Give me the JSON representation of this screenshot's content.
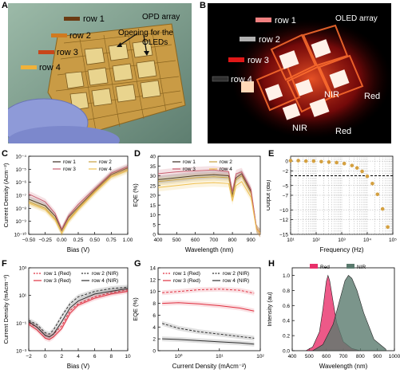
{
  "panels": {
    "A": {
      "letter": "A",
      "title": "OPD array",
      "rows": [
        "row 1",
        "row 2",
        "row 3",
        "row 4"
      ],
      "row_colors": [
        "#6b3a12",
        "#d07a20",
        "#c8461a",
        "#f0b23a"
      ],
      "annotation_line1": "Opening for the",
      "annotation_line2": "OLEDs"
    },
    "B": {
      "letter": "B",
      "title": "OLED array",
      "rows": [
        "row 1",
        "row 2",
        "row 3",
        "row 4"
      ],
      "row_colors": [
        "#f08080",
        "#b0b0b0",
        "#e01818",
        "#303030"
      ],
      "labels": [
        "NIR",
        "Red",
        "NIR",
        "Red"
      ]
    },
    "C": {
      "letter": "C"
    },
    "D": {
      "letter": "D"
    },
    "E": {
      "letter": "E"
    },
    "F": {
      "letter": "F"
    },
    "G": {
      "letter": "G"
    },
    "H": {
      "letter": "H"
    }
  },
  "chart_data": [
    {
      "id": "C",
      "type": "line",
      "xlabel": "Bias (V)",
      "ylabel": "Current Density (Acm⁻²)",
      "xlim": [
        -0.5,
        1.0
      ],
      "ylog": true,
      "ylim_exp": [
        -10,
        -4
      ],
      "xticks": [
        "−0.50",
        "−0.25",
        "0.00",
        "0.25",
        "0.50",
        "0.75",
        "1.00"
      ],
      "yticks": [
        "10⁻¹⁰",
        "10⁻⁹",
        "10⁻⁸",
        "10⁻⁷",
        "10⁻⁶",
        "10⁻⁵",
        "10⁻⁴"
      ],
      "legend": [
        "row 1",
        "row 2",
        "row 3",
        "row 4"
      ],
      "series": [
        {
          "name": "row 1",
          "color": "#3a2a20",
          "x": [
            -0.5,
            -0.25,
            -0.1,
            0.0,
            0.1,
            0.25,
            0.5,
            0.75,
            1.0
          ],
          "y_exp": [
            -7.3,
            -7.8,
            -8.6,
            -9.7,
            -8.7,
            -7.9,
            -6.6,
            -5.4,
            -4.9
          ]
        },
        {
          "name": "row 2",
          "color": "#c8a040",
          "x": [
            -0.5,
            -0.25,
            -0.1,
            0.0,
            0.1,
            0.25,
            0.5,
            0.75,
            1.0
          ],
          "y_exp": [
            -7.5,
            -8.0,
            -8.8,
            -9.9,
            -8.9,
            -8.0,
            -6.7,
            -5.5,
            -5.0
          ]
        },
        {
          "name": "row 3",
          "color": "#c86070",
          "x": [
            -0.5,
            -0.25,
            -0.1,
            0.0,
            0.1,
            0.25,
            0.5,
            0.75,
            1.0
          ],
          "y_exp": [
            -6.9,
            -7.5,
            -8.4,
            -9.6,
            -8.6,
            -7.7,
            -6.5,
            -5.3,
            -4.8
          ]
        },
        {
          "name": "row 4",
          "color": "#f0c050",
          "x": [
            -0.5,
            -0.25,
            -0.1,
            0.0,
            0.1,
            0.25,
            0.5,
            0.75,
            1.0
          ],
          "y_exp": [
            -7.6,
            -8.1,
            -8.9,
            -9.9,
            -9.0,
            -8.1,
            -6.8,
            -5.6,
            -5.1
          ]
        }
      ]
    },
    {
      "id": "D",
      "type": "line",
      "xlabel": "Wavelength (nm)",
      "ylabel": "EQE (%)",
      "xlim": [
        400,
        950
      ],
      "ylim": [
        0,
        40
      ],
      "xticks": [
        "400",
        "500",
        "600",
        "700",
        "800",
        "900"
      ],
      "yticks": [
        "0",
        "5",
        "10",
        "15",
        "20",
        "25",
        "30",
        "35",
        "40"
      ],
      "legend": [
        "row 1",
        "row 2",
        "row 3",
        "row 4"
      ],
      "series": [
        {
          "name": "row 1",
          "color": "#3a2a20",
          "x": [
            400,
            450,
            500,
            600,
            700,
            780,
            800,
            820,
            850,
            900,
            930,
            950
          ],
          "y": [
            28,
            28.5,
            29,
            30,
            30.5,
            30,
            20,
            29,
            31,
            22,
            3,
            0.5
          ]
        },
        {
          "name": "row 2",
          "color": "#c8a040",
          "x": [
            400,
            450,
            500,
            600,
            700,
            780,
            800,
            820,
            850,
            900,
            930,
            950
          ],
          "y": [
            27,
            27.5,
            28,
            29,
            29.5,
            29,
            19,
            28,
            30,
            21,
            3,
            0.5
          ]
        },
        {
          "name": "row 3",
          "color": "#c86070",
          "x": [
            400,
            450,
            500,
            600,
            700,
            780,
            800,
            820,
            850,
            900,
            930,
            950
          ],
          "y": [
            31,
            31.5,
            32,
            32.5,
            33,
            32,
            22,
            31,
            32,
            23,
            3,
            0.5
          ]
        },
        {
          "name": "row 4",
          "color": "#f0c050",
          "x": [
            400,
            450,
            500,
            600,
            700,
            780,
            800,
            820,
            850,
            900,
            930,
            950
          ],
          "y": [
            24,
            24.5,
            25,
            26,
            26.5,
            26,
            17,
            25,
            27,
            19,
            2.5,
            0.5
          ]
        }
      ]
    },
    {
      "id": "E",
      "type": "scatter",
      "xlabel": "Frequency (Hz)",
      "ylabel": "Output (dB)",
      "xlog": true,
      "xlim_exp": [
        1,
        5
      ],
      "ylim": [
        -15,
        1
      ],
      "xticks": [
        "10¹",
        "10²",
        "10³",
        "10⁴",
        "10⁵"
      ],
      "yticks": [
        "0",
        "−2",
        "−5",
        "−7",
        "−10",
        "−12",
        "−15"
      ],
      "ytick_values": [
        0,
        -2,
        -5,
        -7,
        -10,
        -12,
        -15
      ],
      "reference_y": -3,
      "color": "#d4a040",
      "x_exp": [
        1.0,
        1.3,
        1.6,
        1.9,
        2.2,
        2.5,
        2.8,
        3.1,
        3.4,
        3.6,
        3.8,
        4.0,
        4.2,
        4.4,
        4.6,
        4.8
      ],
      "y": [
        0.1,
        0.1,
        0.0,
        0.0,
        -0.1,
        -0.2,
        -0.3,
        -0.5,
        -0.9,
        -1.4,
        -2.1,
        -3.1,
        -4.6,
        -6.8,
        -9.8,
        -13.5
      ]
    },
    {
      "id": "F",
      "type": "line",
      "xlabel": "Bias (V)",
      "ylabel": "Current Density (mAcm⁻²)",
      "xlim": [
        -2,
        10
      ],
      "ylog": true,
      "ylim_exp": [
        -3,
        3
      ],
      "xticks": [
        "−2",
        "0",
        "2",
        "4",
        "6",
        "8",
        "10"
      ],
      "yticks": [
        "10⁻³",
        "10⁻¹",
        "10¹",
        "10³"
      ],
      "ytick_exps": [
        -3,
        -1,
        1,
        3
      ],
      "legend": [
        "row 1 (Red)",
        "row 2 (NIR)",
        "row 3 (Red)",
        "row 4 (NIR)"
      ],
      "series": [
        {
          "name": "row 1 (Red)",
          "color": "#e03040",
          "dash": true,
          "x": [
            -2,
            -1,
            0,
            0.5,
            1,
            2,
            3,
            4,
            6,
            8,
            10
          ],
          "y_exp": [
            -1.0,
            -1.3,
            -1.9,
            -2.0,
            -1.8,
            -1.2,
            -0.1,
            0.4,
            0.9,
            1.2,
            1.4
          ]
        },
        {
          "name": "row 2 (NIR)",
          "color": "#303030",
          "dash": true,
          "x": [
            -2,
            -1,
            0,
            0.5,
            1,
            2,
            3,
            4,
            6,
            8,
            10
          ],
          "y_exp": [
            -0.8,
            -1.1,
            -1.7,
            -1.8,
            -1.5,
            -0.5,
            0.4,
            0.9,
            1.3,
            1.5,
            1.6
          ]
        },
        {
          "name": "row 3 (Red)",
          "color": "#e03040",
          "dash": false,
          "x": [
            -2,
            -1,
            0,
            0.5,
            1,
            2,
            3,
            4,
            6,
            8,
            10
          ],
          "y_exp": [
            -1.1,
            -1.5,
            -2.1,
            -2.2,
            -2.0,
            -1.4,
            -0.3,
            0.3,
            0.8,
            1.1,
            1.3
          ]
        },
        {
          "name": "row 4 (NIR)",
          "color": "#303030",
          "dash": false,
          "x": [
            -2,
            -1,
            0,
            0.5,
            1,
            2,
            3,
            4,
            6,
            8,
            10
          ],
          "y_exp": [
            -0.9,
            -1.3,
            -1.9,
            -2.0,
            -1.8,
            -0.9,
            0.1,
            0.6,
            1.1,
            1.3,
            1.5
          ]
        }
      ]
    },
    {
      "id": "G",
      "type": "line",
      "xlabel": "Current Density (mAcm⁻²)",
      "ylabel": "EQE (%)",
      "xlog": true,
      "xlim_exp": [
        -0.5,
        2.0
      ],
      "ylim": [
        0,
        14
      ],
      "xticks": [
        "10⁰",
        "10¹",
        "10²"
      ],
      "xtick_exps": [
        0,
        1,
        2
      ],
      "yticks": [
        "0",
        "2",
        "4",
        "6",
        "8",
        "10",
        "12",
        "14"
      ],
      "legend": [
        "row 1 (Red)",
        "row 2 (NIR)",
        "row 3 (Red)",
        "row 4 (NIR)"
      ],
      "series": [
        {
          "name": "row 1 (Red)",
          "color": "#e03040",
          "dash": true,
          "x_exp": [
            -0.4,
            0.0,
            0.5,
            1.0,
            1.5,
            1.85
          ],
          "y": [
            9.8,
            10.0,
            10.3,
            10.4,
            10.2,
            9.7
          ]
        },
        {
          "name": "row 2 (NIR)",
          "color": "#303030",
          "dash": true,
          "x_exp": [
            -0.4,
            0.0,
            0.5,
            1.0,
            1.5,
            1.85
          ],
          "y": [
            4.6,
            3.8,
            3.2,
            2.8,
            2.4,
            2.1
          ]
        },
        {
          "name": "row 3 (Red)",
          "color": "#e03040",
          "dash": false,
          "x_exp": [
            -0.4,
            0.0,
            0.5,
            1.0,
            1.5,
            1.85
          ],
          "y": [
            8.0,
            8.1,
            7.9,
            7.6,
            7.2,
            6.7
          ]
        },
        {
          "name": "row 4 (NIR)",
          "color": "#303030",
          "dash": false,
          "x_exp": [
            -0.4,
            0.0,
            0.5,
            1.0,
            1.5,
            1.85
          ],
          "y": [
            2.0,
            1.9,
            1.7,
            1.5,
            1.3,
            1.1
          ]
        }
      ]
    },
    {
      "id": "H",
      "type": "area",
      "xlabel": "Wavelength (nm)",
      "ylabel": "Intensity (au)",
      "xlim": [
        400,
        1000
      ],
      "ylim": [
        0,
        1.1
      ],
      "xticks": [
        "400",
        "500",
        "600",
        "700",
        "800",
        "900",
        "1000"
      ],
      "yticks": [
        "0.0",
        "0.2",
        "0.4",
        "0.6",
        "0.8",
        "1.0"
      ],
      "legend": [
        "Red",
        "NIR"
      ],
      "series": [
        {
          "name": "Red",
          "color": "#e8306a",
          "x": [
            480,
            520,
            560,
            580,
            600,
            610,
            620,
            640,
            660,
            700,
            750,
            800
          ],
          "y": [
            0.0,
            0.05,
            0.25,
            0.55,
            0.92,
            1.0,
            0.93,
            0.65,
            0.38,
            0.12,
            0.03,
            0.0
          ]
        },
        {
          "name": "NIR",
          "color": "#5a7a6e",
          "x": [
            520,
            580,
            640,
            680,
            710,
            730,
            750,
            780,
            820,
            880,
            950
          ],
          "y": [
            0.0,
            0.08,
            0.35,
            0.68,
            0.93,
            1.0,
            0.96,
            0.8,
            0.5,
            0.15,
            0.02
          ]
        }
      ]
    }
  ]
}
